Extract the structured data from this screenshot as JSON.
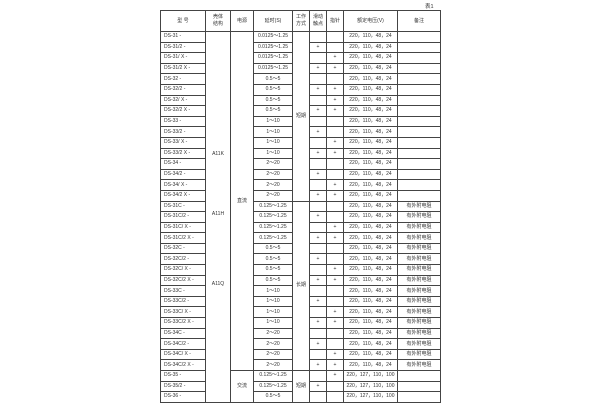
{
  "caption": "表1",
  "headers": [
    "型 号",
    "壳体\n结构",
    "电源",
    "延时(S)",
    "工作\n方式",
    "滑动\n触点",
    "指针",
    "额定电压(V)",
    "备注"
  ],
  "shell_labels": [
    "A11K",
    "A11H",
    "A11Q"
  ],
  "power_groups": [
    {
      "label": "直流",
      "rows": 32
    },
    {
      "label": "交流",
      "rows": 3
    }
  ],
  "mode_groups": [
    {
      "label": "短期",
      "rows": 16
    },
    {
      "label": "长期",
      "rows": 16
    },
    {
      "label": "短期",
      "rows": 3
    }
  ],
  "mark": "+",
  "rows": [
    {
      "model": "DS-31 -",
      "delay": "0.0125～1.25",
      "slide": false,
      "pointer": false,
      "voltage": "220，110，48，24",
      "note": ""
    },
    {
      "model": "DS-31/2 -",
      "delay": "0.0125～1.25",
      "slide": true,
      "pointer": false,
      "voltage": "220，110，48，24",
      "note": ""
    },
    {
      "model": "DS-31/ X -",
      "delay": "0.0125～1.25",
      "slide": false,
      "pointer": true,
      "voltage": "220，110，48，24",
      "note": ""
    },
    {
      "model": "DS-31/2 X -",
      "delay": "0.0125～1.25",
      "slide": true,
      "pointer": true,
      "voltage": "220，110，48，24",
      "note": ""
    },
    {
      "model": "DS-32 -",
      "delay": "0.5～5",
      "slide": false,
      "pointer": false,
      "voltage": "220，110，48，24",
      "note": ""
    },
    {
      "model": "DS-32/2 -",
      "delay": "0.5～5",
      "slide": true,
      "pointer": true,
      "voltage": "220，110，48，24",
      "note": ""
    },
    {
      "model": "DS-32/ X -",
      "delay": "0.5～5",
      "slide": false,
      "pointer": true,
      "voltage": "220，110，48，24",
      "note": ""
    },
    {
      "model": "DS-32/2 X -",
      "delay": "0.5～5",
      "slide": true,
      "pointer": true,
      "voltage": "220，110，48，24",
      "note": ""
    },
    {
      "model": "DS-33 -",
      "delay": "1～10",
      "slide": false,
      "pointer": false,
      "voltage": "220，110，48，24",
      "note": ""
    },
    {
      "model": "DS-33/2 -",
      "delay": "1～10",
      "slide": true,
      "pointer": false,
      "voltage": "220，110，48，24",
      "note": ""
    },
    {
      "model": "DS-33/ X -",
      "delay": "1～10",
      "slide": false,
      "pointer": true,
      "voltage": "220，110，48，24",
      "note": ""
    },
    {
      "model": "DS-33/2 X -",
      "delay": "1～10",
      "slide": true,
      "pointer": true,
      "voltage": "220，110，48，24",
      "note": ""
    },
    {
      "model": "DS-34 -",
      "delay": "2～20",
      "slide": false,
      "pointer": false,
      "voltage": "220，110，48，24",
      "note": ""
    },
    {
      "model": "DS-34/2 -",
      "delay": "2～20",
      "slide": true,
      "pointer": false,
      "voltage": "220，110，48，24",
      "note": ""
    },
    {
      "model": "DS-34/ X -",
      "delay": "2～20",
      "slide": false,
      "pointer": true,
      "voltage": "220，110，48，24",
      "note": ""
    },
    {
      "model": "DS-34/2 X -",
      "delay": "2～20",
      "slide": true,
      "pointer": true,
      "voltage": "220，110，48，24",
      "note": ""
    },
    {
      "model": "DS-31C -",
      "delay": "0.125～1.25",
      "slide": false,
      "pointer": false,
      "voltage": "220，110，48，24",
      "note": "有外附电阻"
    },
    {
      "model": "DS-31C/2 -",
      "delay": "0.125～1.25",
      "slide": true,
      "pointer": false,
      "voltage": "220，110，48，24",
      "note": "有外附电阻"
    },
    {
      "model": "DS-31C/ X -",
      "delay": "0.125～1.25",
      "slide": false,
      "pointer": true,
      "voltage": "220，110，48，24",
      "note": "有外附电阻"
    },
    {
      "model": "DS-31C/2 X -",
      "delay": "0.125～1.25",
      "slide": true,
      "pointer": true,
      "voltage": "220，110，48，24",
      "note": "有外附电阻"
    },
    {
      "model": "DS-32C -",
      "delay": "0.5～5",
      "slide": false,
      "pointer": false,
      "voltage": "220，110，48，24",
      "note": "有外附电阻"
    },
    {
      "model": "DS-32C/2 -",
      "delay": "0.5～5",
      "slide": true,
      "pointer": false,
      "voltage": "220，110，48，24",
      "note": "有外附电阻"
    },
    {
      "model": "DS-32C/ X -",
      "delay": "0.5～5",
      "slide": false,
      "pointer": true,
      "voltage": "220，110，48，24",
      "note": "有外附电阻"
    },
    {
      "model": "DS-32C/2 X -",
      "delay": "0.5～5",
      "slide": true,
      "pointer": true,
      "voltage": "220，110，48，24",
      "note": "有外附电阻"
    },
    {
      "model": "DS-33C -",
      "delay": "1～10",
      "slide": false,
      "pointer": false,
      "voltage": "220，110，48，24",
      "note": "有外附电阻"
    },
    {
      "model": "DS-33C/2 -",
      "delay": "1～10",
      "slide": true,
      "pointer": false,
      "voltage": "220，110，48，24",
      "note": "有外附电阻"
    },
    {
      "model": "DS-33C/ X -",
      "delay": "1～10",
      "slide": false,
      "pointer": true,
      "voltage": "220，110，48，24",
      "note": "有外附电阻"
    },
    {
      "model": "DS-33C/2 X -",
      "delay": "1～10",
      "slide": true,
      "pointer": true,
      "voltage": "220，110，48，24",
      "note": "有外附电阻"
    },
    {
      "model": "DS-34C -",
      "delay": "2～20",
      "slide": false,
      "pointer": false,
      "voltage": "220，110，48，24",
      "note": "有外附电阻"
    },
    {
      "model": "DS-34C/2 -",
      "delay": "2～20",
      "slide": true,
      "pointer": false,
      "voltage": "220，110，48，24",
      "note": "有外附电阻"
    },
    {
      "model": "DS-34C/ X -",
      "delay": "2～20",
      "slide": false,
      "pointer": true,
      "voltage": "220，110，48，24",
      "note": "有外附电阻"
    },
    {
      "model": "DS-34C/2 X -",
      "delay": "2～20",
      "slide": true,
      "pointer": true,
      "voltage": "220，110，48，24",
      "note": "有外附电阻"
    },
    {
      "model": "DS-35 -",
      "delay": "0.125～1.25",
      "slide": false,
      "pointer": true,
      "voltage": "220，127，110，100",
      "note": ""
    },
    {
      "model": "DS-35/2 -",
      "delay": "0.125～1.25",
      "slide": true,
      "pointer": false,
      "voltage": "220，127，110，100",
      "note": ""
    },
    {
      "model": "DS-36 -",
      "delay": "0.5～5",
      "slide": false,
      "pointer": false,
      "voltage": "220，127，110，100",
      "note": ""
    }
  ]
}
